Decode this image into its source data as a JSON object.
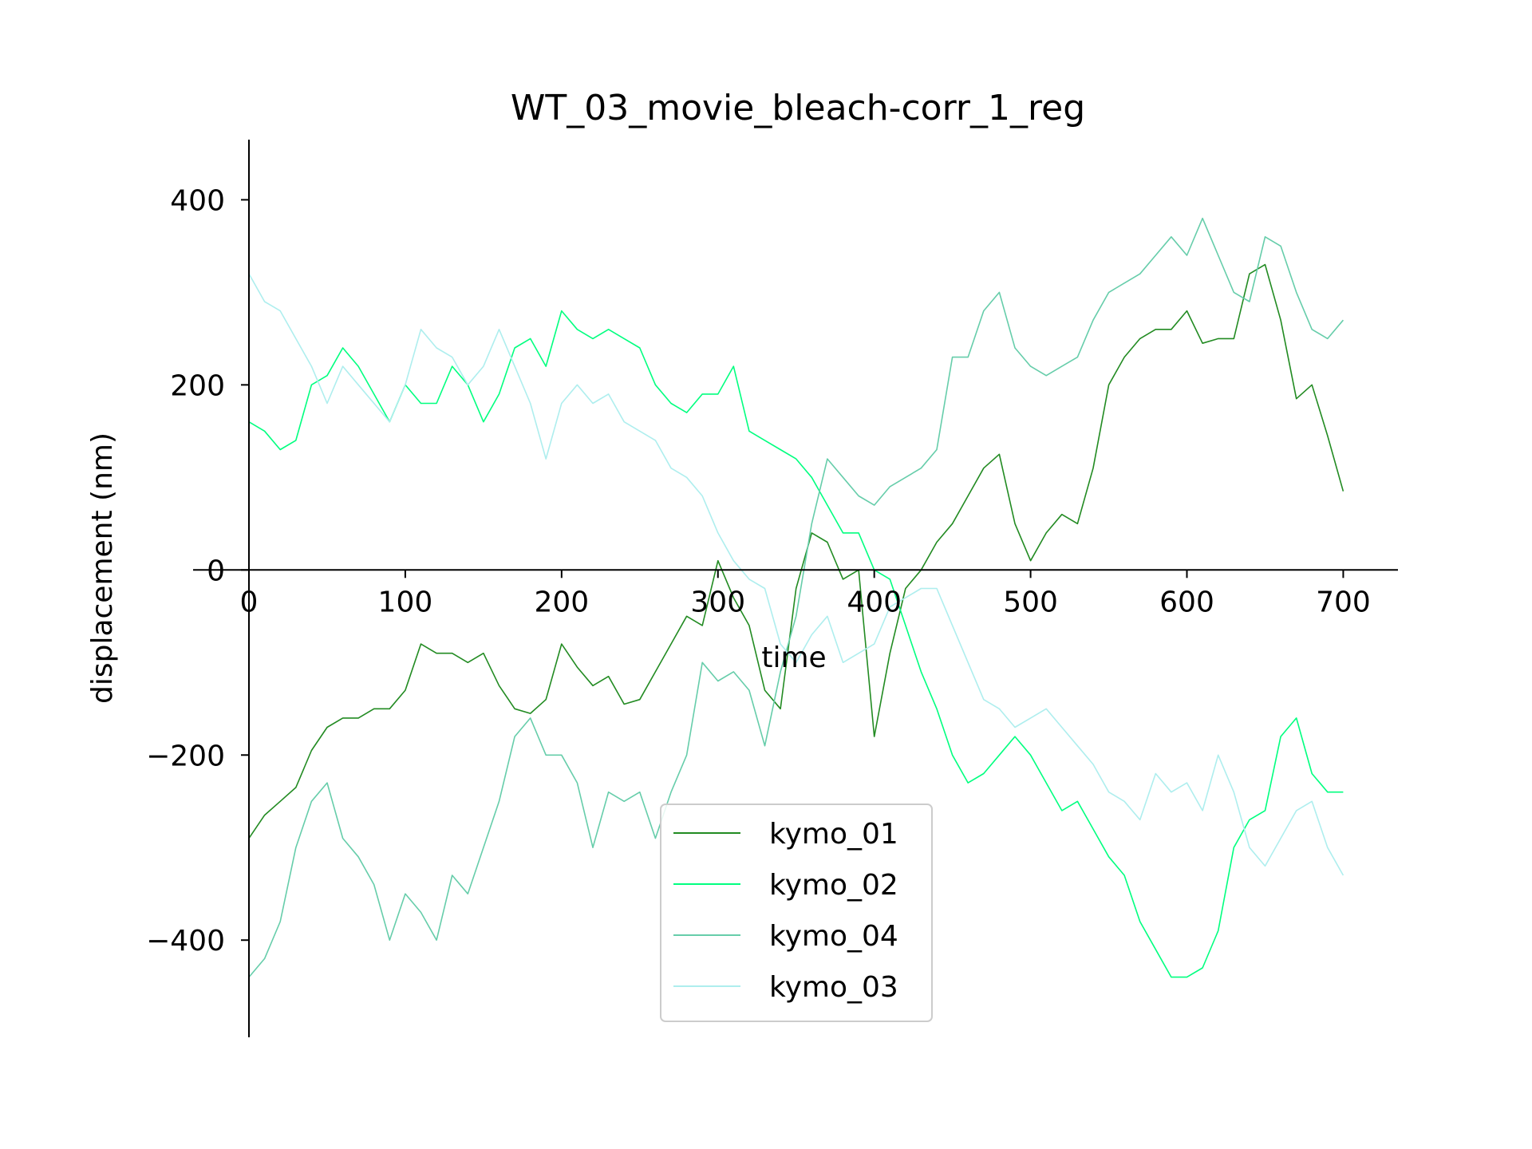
{
  "chart_data": {
    "type": "line",
    "title": "WT_03_movie_bleach-corr_1_reg",
    "xlabel": "time",
    "ylabel": "displacement (nm)",
    "xlim": [
      0,
      735
    ],
    "ylim": [
      -505,
      465
    ],
    "xticks": [
      0,
      100,
      200,
      300,
      400,
      500,
      600,
      700
    ],
    "yticks": [
      -400,
      -200,
      0,
      200,
      400
    ],
    "xtick_labels": [
      "0",
      "100",
      "200",
      "300",
      "400",
      "500",
      "600",
      "700"
    ],
    "ytick_labels": [
      "−400",
      "−200",
      "0",
      "200",
      "400"
    ],
    "grid": false,
    "legend_position": "lower center",
    "series": [
      {
        "name": "kymo_01",
        "color": "#228b22",
        "x": [
          0,
          10,
          20,
          30,
          40,
          50,
          60,
          70,
          80,
          90,
          100,
          110,
          120,
          130,
          140,
          150,
          160,
          170,
          180,
          190,
          200,
          210,
          220,
          230,
          240,
          250,
          260,
          270,
          280,
          290,
          300,
          310,
          320,
          330,
          340,
          350,
          360,
          370,
          380,
          390,
          400,
          410,
          420,
          430,
          440,
          450,
          460,
          470,
          480,
          490,
          500,
          510,
          520,
          530,
          540,
          550,
          560,
          570,
          580,
          590,
          600,
          610,
          620,
          630,
          640,
          650,
          660,
          670,
          680,
          690,
          700
        ],
        "values": [
          -290,
          -265,
          -250,
          -235,
          -195,
          -170,
          -160,
          -160,
          -150,
          -150,
          -130,
          -80,
          -90,
          -90,
          -100,
          -90,
          -125,
          -150,
          -155,
          -140,
          -80,
          -105,
          -125,
          -115,
          -145,
          -140,
          -110,
          -80,
          -50,
          -60,
          10,
          -30,
          -60,
          -130,
          -150,
          -20,
          40,
          30,
          -10,
          0,
          -180,
          -90,
          -20,
          0,
          30,
          50,
          80,
          110,
          125,
          50,
          10,
          40,
          60,
          50,
          110,
          200,
          230,
          250,
          260,
          260,
          280,
          245,
          250,
          250,
          320,
          330,
          270,
          185,
          200,
          145,
          85
        ]
      },
      {
        "name": "kymo_02",
        "color": "#00ff7f",
        "x": [
          0,
          10,
          20,
          30,
          40,
          50,
          60,
          70,
          80,
          90,
          100,
          110,
          120,
          130,
          140,
          150,
          160,
          170,
          180,
          190,
          200,
          210,
          220,
          230,
          240,
          250,
          260,
          270,
          280,
          290,
          300,
          310,
          320,
          330,
          340,
          350,
          360,
          370,
          380,
          390,
          400,
          410,
          420,
          430,
          440,
          450,
          460,
          470,
          480,
          490,
          500,
          510,
          520,
          530,
          540,
          550,
          560,
          570,
          580,
          590,
          600,
          610,
          620,
          630,
          640,
          650,
          660,
          670,
          680,
          690,
          700
        ],
        "values": [
          160,
          150,
          130,
          140,
          200,
          210,
          240,
          220,
          190,
          160,
          200,
          180,
          180,
          220,
          200,
          160,
          190,
          240,
          250,
          220,
          280,
          260,
          250,
          260,
          250,
          240,
          200,
          180,
          170,
          190,
          190,
          220,
          150,
          140,
          130,
          120,
          100,
          70,
          40,
          40,
          0,
          -10,
          -60,
          -110,
          -150,
          -200,
          -230,
          -220,
          -200,
          -180,
          -200,
          -230,
          -260,
          -250,
          -280,
          -310,
          -330,
          -380,
          -410,
          -440,
          -440,
          -430,
          -390,
          -300,
          -270,
          -260,
          -180,
          -160,
          -220,
          -240,
          -240
        ]
      },
      {
        "name": "kymo_04",
        "color": "#66cdaa",
        "x": [
          0,
          10,
          20,
          30,
          40,
          50,
          60,
          70,
          80,
          90,
          100,
          110,
          120,
          130,
          140,
          150,
          160,
          170,
          180,
          190,
          200,
          210,
          220,
          230,
          240,
          250,
          260,
          270,
          280,
          290,
          300,
          310,
          320,
          330,
          340,
          350,
          360,
          370,
          380,
          390,
          400,
          410,
          420,
          430,
          440,
          450,
          460,
          470,
          480,
          490,
          500,
          510,
          520,
          530,
          540,
          550,
          560,
          570,
          580,
          590,
          600,
          610,
          620,
          630,
          640,
          650,
          660,
          670,
          680,
          690,
          700
        ],
        "values": [
          -440,
          -420,
          -380,
          -300,
          -250,
          -230,
          -290,
          -310,
          -340,
          -400,
          -350,
          -370,
          -400,
          -330,
          -350,
          -300,
          -250,
          -180,
          -160,
          -200,
          -200,
          -230,
          -300,
          -240,
          -250,
          -240,
          -290,
          -240,
          -200,
          -100,
          -120,
          -110,
          -130,
          -190,
          -110,
          -50,
          50,
          120,
          100,
          80,
          70,
          90,
          100,
          110,
          130,
          230,
          230,
          280,
          300,
          240,
          220,
          210,
          220,
          230,
          270,
          300,
          310,
          320,
          340,
          360,
          340,
          380,
          340,
          300,
          290,
          360,
          350,
          300,
          260,
          250,
          270
        ]
      },
      {
        "name": "kymo_03",
        "color": "#aeeeee",
        "x": [
          0,
          10,
          20,
          30,
          40,
          50,
          60,
          70,
          80,
          90,
          100,
          110,
          120,
          130,
          140,
          150,
          160,
          170,
          180,
          190,
          200,
          210,
          220,
          230,
          240,
          250,
          260,
          270,
          280,
          290,
          300,
          310,
          320,
          330,
          340,
          350,
          360,
          370,
          380,
          390,
          400,
          410,
          420,
          430,
          440,
          450,
          460,
          470,
          480,
          490,
          500,
          510,
          520,
          530,
          540,
          550,
          560,
          570,
          580,
          590,
          600,
          610,
          620,
          630,
          640,
          650,
          660,
          670,
          680,
          690,
          700
        ],
        "values": [
          320,
          290,
          280,
          250,
          220,
          180,
          220,
          200,
          180,
          160,
          200,
          260,
          240,
          230,
          200,
          220,
          260,
          220,
          180,
          120,
          180,
          200,
          180,
          190,
          160,
          150,
          140,
          110,
          100,
          80,
          40,
          10,
          -10,
          -20,
          -80,
          -100,
          -70,
          -50,
          -100,
          -90,
          -80,
          -40,
          -30,
          -20,
          -20,
          -60,
          -100,
          -140,
          -150,
          -170,
          -160,
          -150,
          -170,
          -190,
          -210,
          -240,
          -250,
          -270,
          -220,
          -240,
          -230,
          -260,
          -200,
          -240,
          -300,
          -320,
          -290,
          -260,
          -250,
          -300,
          -330
        ]
      }
    ]
  }
}
